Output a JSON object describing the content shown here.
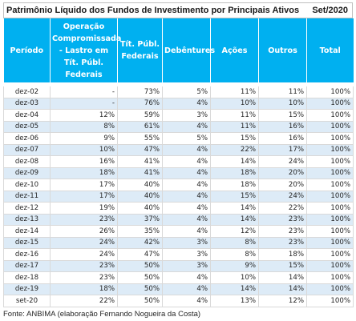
{
  "title": "Patrimônio Líquido dos Fundos de Investimento por Principais Ativos",
  "date": "Set/2020",
  "header": {
    "periodo": "Período",
    "operacao": "Operação Compromissada - Lastro em Tít. Públ. Federais",
    "titpubl": "Tít. Públ. Federais",
    "debentures": "Debêntures",
    "acoes": "Ações",
    "outros": "Outros",
    "total": "Total"
  },
  "rows": [
    {
      "periodo": "dez-02",
      "operacao": "-",
      "titpubl": "73%",
      "debentures": "5%",
      "acoes": "11%",
      "outros": "11%",
      "total": "100%"
    },
    {
      "periodo": "dez-03",
      "operacao": "-",
      "titpubl": "76%",
      "debentures": "4%",
      "acoes": "10%",
      "outros": "10%",
      "total": "100%"
    },
    {
      "periodo": "dez-04",
      "operacao": "12%",
      "titpubl": "59%",
      "debentures": "3%",
      "acoes": "11%",
      "outros": "15%",
      "total": "100%"
    },
    {
      "periodo": "dez-05",
      "operacao": "8%",
      "titpubl": "61%",
      "debentures": "4%",
      "acoes": "11%",
      "outros": "16%",
      "total": "100%"
    },
    {
      "periodo": "dez-06",
      "operacao": "9%",
      "titpubl": "55%",
      "debentures": "5%",
      "acoes": "15%",
      "outros": "16%",
      "total": "100%"
    },
    {
      "periodo": "dez-07",
      "operacao": "10%",
      "titpubl": "47%",
      "debentures": "4%",
      "acoes": "22%",
      "outros": "17%",
      "total": "100%"
    },
    {
      "periodo": "dez-08",
      "operacao": "16%",
      "titpubl": "41%",
      "debentures": "4%",
      "acoes": "14%",
      "outros": "24%",
      "total": "100%"
    },
    {
      "periodo": "dez-09",
      "operacao": "18%",
      "titpubl": "41%",
      "debentures": "4%",
      "acoes": "18%",
      "outros": "20%",
      "total": "100%"
    },
    {
      "periodo": "dez-10",
      "operacao": "17%",
      "titpubl": "40%",
      "debentures": "4%",
      "acoes": "18%",
      "outros": "20%",
      "total": "100%"
    },
    {
      "periodo": "dez-11",
      "operacao": "17%",
      "titpubl": "40%",
      "debentures": "4%",
      "acoes": "15%",
      "outros": "24%",
      "total": "100%"
    },
    {
      "periodo": "dez-12",
      "operacao": "19%",
      "titpubl": "40%",
      "debentures": "4%",
      "acoes": "14%",
      "outros": "22%",
      "total": "100%"
    },
    {
      "periodo": "dez-13",
      "operacao": "23%",
      "titpubl": "37%",
      "debentures": "4%",
      "acoes": "14%",
      "outros": "23%",
      "total": "100%"
    },
    {
      "periodo": "dez-14",
      "operacao": "26%",
      "titpubl": "35%",
      "debentures": "4%",
      "acoes": "12%",
      "outros": "23%",
      "total": "100%"
    },
    {
      "periodo": "dez-15",
      "operacao": "24%",
      "titpubl": "42%",
      "debentures": "3%",
      "acoes": "8%",
      "outros": "23%",
      "total": "100%"
    },
    {
      "periodo": "dez-16",
      "operacao": "24%",
      "titpubl": "47%",
      "debentures": "3%",
      "acoes": "8%",
      "outros": "18%",
      "total": "100%"
    },
    {
      "periodo": "dez-17",
      "operacao": "23%",
      "titpubl": "50%",
      "debentures": "3%",
      "acoes": "9%",
      "outros": "15%",
      "total": "100%"
    },
    {
      "periodo": "dez-18",
      "operacao": "23%",
      "titpubl": "50%",
      "debentures": "4%",
      "acoes": "10%",
      "outros": "14%",
      "total": "100%"
    },
    {
      "periodo": "dez-19",
      "operacao": "18%",
      "titpubl": "50%",
      "debentures": "4%",
      "acoes": "14%",
      "outros": "14%",
      "total": "100%"
    },
    {
      "periodo": "set-20",
      "operacao": "22%",
      "titpubl": "50%",
      "debentures": "4%",
      "acoes": "13%",
      "outros": "12%",
      "total": "100%"
    }
  ],
  "source": "Fonte: ANBIMA (elaboração Fernando Nogueira da Costa)",
  "colors": {
    "header_bg": "#00b0f0",
    "row_band": "#ddebf7"
  }
}
